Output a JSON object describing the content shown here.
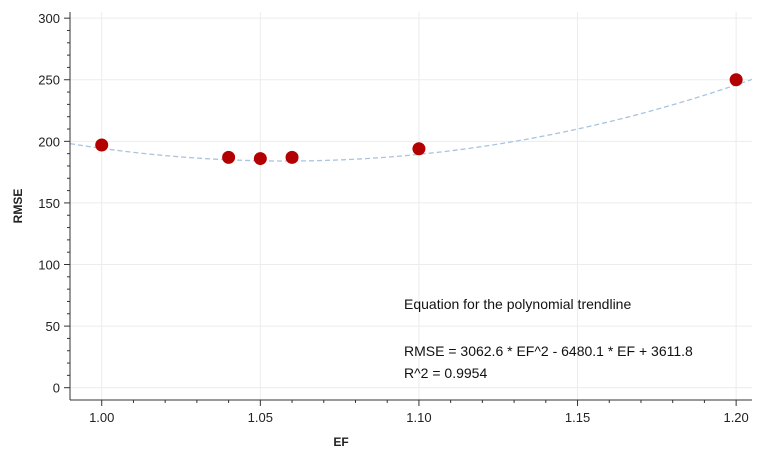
{
  "chart_data": {
    "type": "scatter",
    "xlabel": "EF",
    "ylabel": "RMSE",
    "xlim": [
      0.99,
      1.205
    ],
    "ylim": [
      -10,
      305
    ],
    "x_ticks": [
      "1.00",
      "1.05",
      "1.10",
      "1.15",
      "1.20"
    ],
    "y_ticks": [
      "0",
      "50",
      "100",
      "150",
      "200",
      "250",
      "300"
    ],
    "grid": true,
    "series": [
      {
        "x": [
          1.0,
          1.04,
          1.05,
          1.06,
          1.1,
          1.2
        ],
        "y": [
          197,
          187,
          186,
          187,
          194,
          250
        ],
        "color": "#b30000"
      }
    ],
    "trendline": {
      "type": "polynomial",
      "coefficients": [
        3062.6,
        -6480.1,
        3611.8
      ],
      "color": "#a9c4df",
      "style": "dashed"
    },
    "annotations": {
      "equation_title": "Equation for the polynomial trendline",
      "equation": "RMSE = 3062.6 * EF^2 - 6480.1 * EF + 3611.8",
      "r_squared": "R^2 = 0.9954"
    }
  }
}
